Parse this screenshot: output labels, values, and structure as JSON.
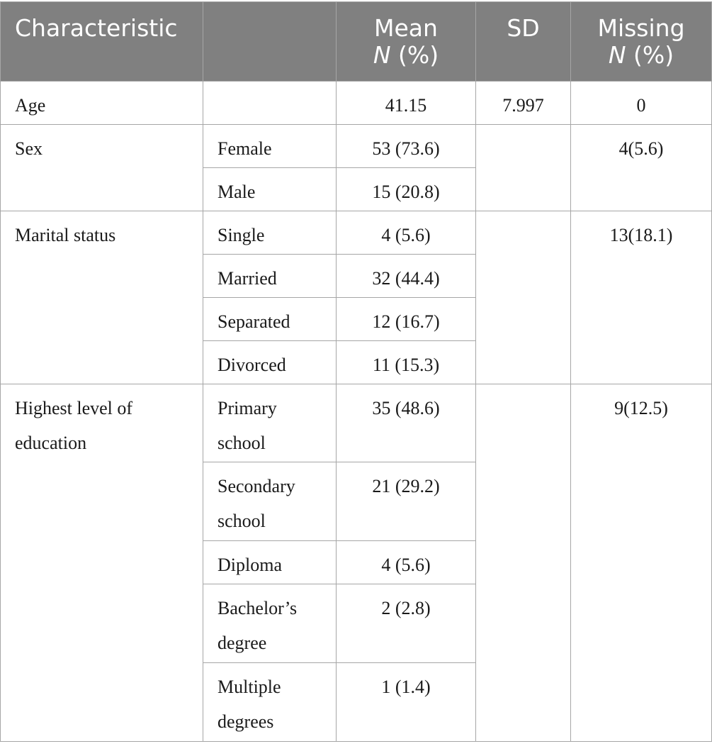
{
  "table": {
    "headers": {
      "characteristic": "Characteristic",
      "category": "",
      "mean_line1": "Mean",
      "mean_line2_n": "N",
      "mean_line2_pct": " (%)",
      "sd": "SD",
      "missing_line1": "Missing",
      "missing_line2_n": "N",
      "missing_line2_pct": " (%)"
    },
    "age": {
      "label": "Age",
      "mean": "41.15",
      "sd": "7.997",
      "missing": "0"
    },
    "sex": {
      "label": "Sex",
      "missing": "4(5.6)",
      "rows": [
        {
          "category": "Female",
          "value": "53 (73.6)"
        },
        {
          "category": "Male",
          "value": "15 (20.8)"
        }
      ]
    },
    "marital": {
      "label": "Marital status",
      "missing": "13(18.1)",
      "rows": [
        {
          "category": "Single",
          "value": "4 (5.6)"
        },
        {
          "category": "Married",
          "value": "32 (44.4)"
        },
        {
          "category": "Separated",
          "value": "12 (16.7)"
        },
        {
          "category": "Divorced",
          "value": "11 (15.3)"
        }
      ]
    },
    "education": {
      "label_line1": "Highest level of",
      "label_line2": "education",
      "missing": "9(12.5)",
      "rows": [
        {
          "category_line1": "Primary",
          "category_line2": "school",
          "value": "35 (48.6)"
        },
        {
          "category_line1": "Secondary",
          "category_line2": "school",
          "value": "21 (29.2)"
        },
        {
          "category_line1": "Diploma",
          "category_line2": "",
          "value": "4 (5.6)"
        },
        {
          "category_line1": "Bachelor’s",
          "category_line2": "degree",
          "value": "2 (2.8)"
        },
        {
          "category_line1": "Multiple",
          "category_line2": "degrees",
          "value": "1 (1.4)"
        }
      ]
    }
  }
}
